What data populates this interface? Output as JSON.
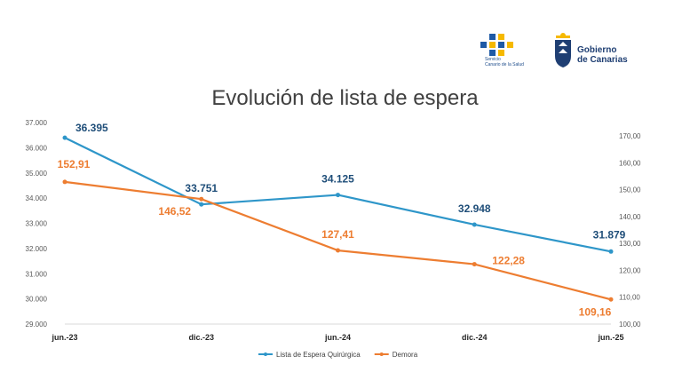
{
  "branding": {
    "left_logo_lines": [
      "Servicio",
      "Canario de la Salud"
    ],
    "right_logo_lines": [
      "Gobierno",
      "de Canarias"
    ],
    "colors": {
      "yellow": "#f6b900",
      "blue": "#1f5aa6",
      "navy": "#1f3f73"
    }
  },
  "chart_data": {
    "type": "line",
    "title": "Evolución de lista de espera",
    "xlabel": "",
    "ylabel": "",
    "categories": [
      "jun.-23",
      "dic.-23",
      "jun.-24",
      "dic.-24",
      "jun.-25"
    ],
    "series": [
      {
        "name": "Lista de Espera Quirúrgica",
        "axis": "left",
        "color": "#2e96c9",
        "label_color": "#1f4e79",
        "values": [
          36395,
          33751,
          34125,
          32948,
          31879
        ],
        "labels": [
          "36.395",
          "33.751",
          "34.125",
          "32.948",
          "31.879"
        ]
      },
      {
        "name": "Demora",
        "axis": "right",
        "color": "#ed7d31",
        "label_color": "#ed7d31",
        "values": [
          152.91,
          146.52,
          127.41,
          122.28,
          109.16
        ],
        "labels": [
          "152,91",
          "146,52",
          "127,41",
          "122,28",
          "109,16"
        ]
      }
    ],
    "y_left": {
      "range": [
        29000,
        37000
      ],
      "ticks": [
        "29.000",
        "30.000",
        "31.000",
        "32.000",
        "33.000",
        "34.000",
        "35.000",
        "36.000",
        "37.000"
      ]
    },
    "y_right": {
      "range": [
        100,
        175
      ],
      "ticks": [
        "100,00",
        "110,00",
        "120,00",
        "130,00",
        "140,00",
        "150,00",
        "160,00",
        "170,00"
      ]
    },
    "grid": false,
    "legend_position": "bottom"
  }
}
